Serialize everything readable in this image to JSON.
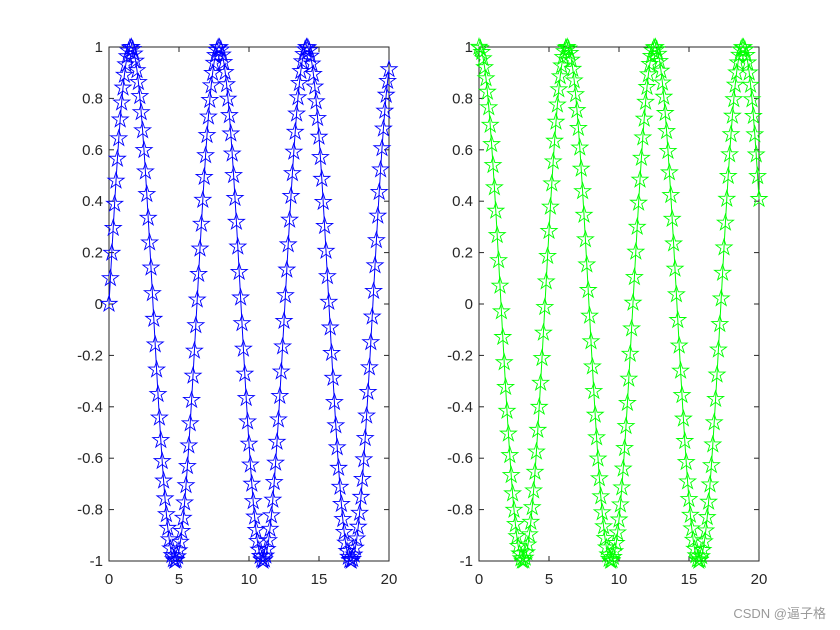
{
  "chart_data": [
    {
      "type": "line",
      "function": "sin(x)",
      "marker": "pentagram",
      "color": "#0000ff",
      "x_range": [
        0,
        20
      ],
      "x_step": 0.1,
      "xlim": [
        0,
        20
      ],
      "ylim": [
        -1,
        1
      ],
      "xticks": [
        "0",
        "5",
        "10",
        "15",
        "20"
      ],
      "yticks": [
        "-1",
        "-0.8",
        "-0.6",
        "-0.4",
        "-0.2",
        "0",
        "0.2",
        "0.4",
        "0.6",
        "0.8",
        "1"
      ],
      "grid": false,
      "series": [
        {
          "x_start": 0,
          "x_end": 20,
          "y_start": 0,
          "y_end": 0.913
        }
      ]
    },
    {
      "type": "line",
      "function": "cos(x)",
      "marker": "pentagram",
      "color": "#00ff00",
      "x_range": [
        0,
        20
      ],
      "x_step": 0.1,
      "xlim": [
        0,
        20
      ],
      "ylim": [
        -1,
        1
      ],
      "xticks": [
        "0",
        "5",
        "10",
        "15",
        "20"
      ],
      "yticks": [
        "-1",
        "-0.8",
        "-0.6",
        "-0.4",
        "-0.2",
        "0",
        "0.2",
        "0.4",
        "0.6",
        "0.8",
        "1"
      ],
      "grid": false,
      "series": [
        {
          "x_start": 0,
          "x_end": 20,
          "y_start": 1,
          "y_end": 0.408
        }
      ]
    }
  ],
  "watermark": "CSDN @逼子格"
}
